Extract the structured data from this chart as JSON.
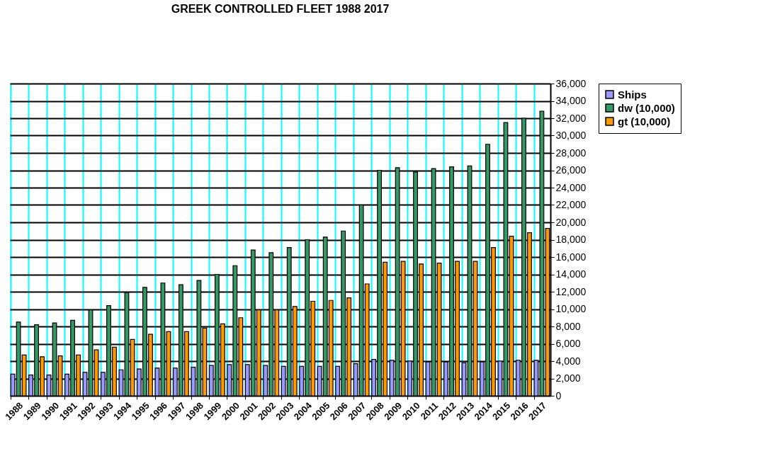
{
  "chart_data": {
    "type": "bar",
    "title": "GREEK CONTROLLED FLEET 1988 2017",
    "categories": [
      "1988",
      "1989",
      "1990",
      "1991",
      "1992",
      "1993",
      "1994",
      "1995",
      "1996",
      "1997",
      "1998",
      "1999",
      "2000",
      "2001",
      "2002",
      "2003",
      "2004",
      "2005",
      "2006",
      "2007",
      "2008",
      "2009",
      "2010",
      "2011",
      "2012",
      "2013",
      "2014",
      "2015",
      "2016",
      "2017"
    ],
    "series": [
      {
        "name": "Ships",
        "color": "#9999ff",
        "values": [
          2500,
          2400,
          2400,
          2500,
          2700,
          2700,
          3000,
          3100,
          3200,
          3200,
          3300,
          3500,
          3600,
          3600,
          3500,
          3400,
          3400,
          3400,
          3400,
          3700,
          4200,
          4100,
          4000,
          3900,
          3900,
          3800,
          3900,
          4000,
          4100,
          4100
        ]
      },
      {
        "name": "dw (10,000)",
        "color": "#339966",
        "values": [
          8500,
          8200,
          8400,
          8700,
          9900,
          10400,
          11900,
          12500,
          13000,
          12800,
          13300,
          14000,
          15000,
          16800,
          16500,
          17100,
          18000,
          18300,
          19000,
          22000,
          26000,
          26300,
          25800,
          26200,
          26400,
          26500,
          29000,
          31500,
          32000,
          32800
        ]
      },
      {
        "name": "gt (10,000)",
        "color": "#ff9900",
        "values": [
          4700,
          4500,
          4600,
          4700,
          5300,
          5600,
          6500,
          7100,
          7400,
          7400,
          7800,
          8300,
          9000,
          9900,
          9900,
          10300,
          10900,
          11000,
          11300,
          12900,
          15400,
          15500,
          15200,
          15300,
          15500,
          15500,
          17100,
          18400,
          18800,
          19300
        ]
      }
    ],
    "ylim": [
      0,
      36000
    ],
    "yticks": [
      {
        "value": 0,
        "label": "0"
      },
      {
        "value": 2000,
        "label": "2,000"
      },
      {
        "value": 4000,
        "label": "4,000"
      },
      {
        "value": 6000,
        "label": "6,000"
      },
      {
        "value": 8000,
        "label": "8,000"
      },
      {
        "value": 10000,
        "label": "10,000"
      },
      {
        "value": 12000,
        "label": "12,000"
      },
      {
        "value": 14000,
        "label": "14,000"
      },
      {
        "value": 16000,
        "label": "16,000"
      },
      {
        "value": 18000,
        "label": "18,000"
      },
      {
        "value": 20000,
        "label": "20,000"
      },
      {
        "value": 22000,
        "label": "22,000"
      },
      {
        "value": 24000,
        "label": "24,000"
      },
      {
        "value": 26000,
        "label": "26,000"
      },
      {
        "value": 28000,
        "label": "28,000"
      },
      {
        "value": 30000,
        "label": "30,000"
      },
      {
        "value": 32000,
        "label": "32,000"
      },
      {
        "value": 34000,
        "label": "34,000"
      },
      {
        "value": 36000,
        "label": "36,000"
      }
    ],
    "grid": true,
    "legend": "right"
  }
}
